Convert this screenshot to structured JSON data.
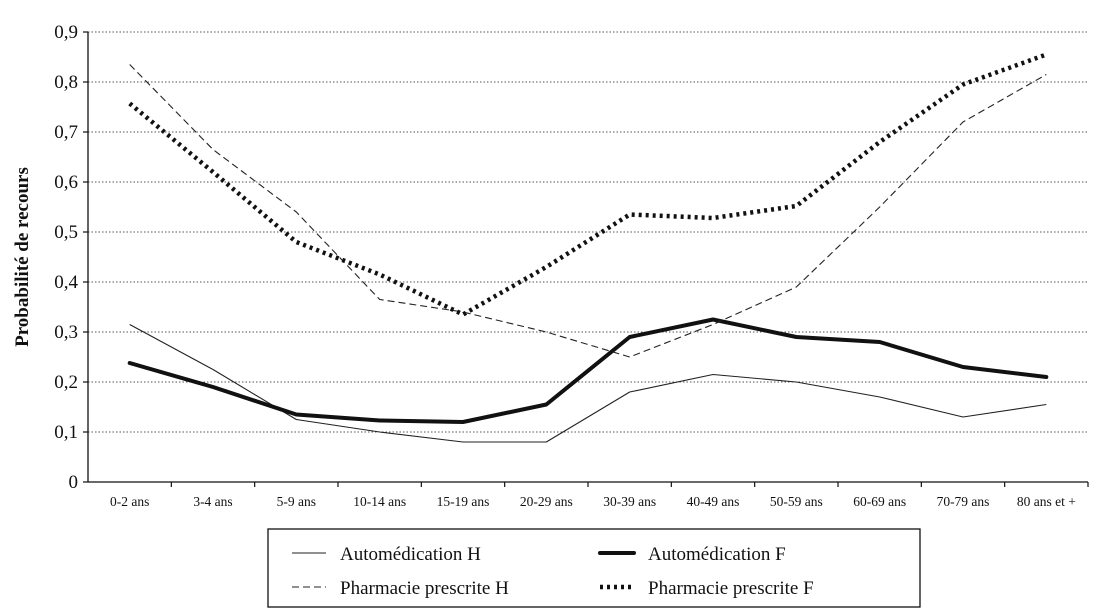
{
  "chart_data": {
    "type": "line",
    "title": "",
    "xlabel": "",
    "ylabel": "Probabilité de recours",
    "categories": [
      "0-2 ans",
      "3-4 ans",
      "5-9 ans",
      "10-14 ans",
      "15-19 ans",
      "20-29 ans",
      "30-39 ans",
      "40-49 ans",
      "50-59 ans",
      "60-69 ans",
      "70-79 ans",
      "80 ans et +"
    ],
    "y_ticks": [
      "0",
      "0,1",
      "0,2",
      "0,3",
      "0,4",
      "0,5",
      "0,6",
      "0,7",
      "0,8",
      "0,9"
    ],
    "ylim": [
      0,
      0.9
    ],
    "grid": "horizontal dotted",
    "legend_position": "bottom",
    "series": [
      {
        "name": "Automédication H",
        "style": "thin-solid",
        "color": "#222222",
        "values": [
          0.315,
          0.225,
          0.125,
          0.1,
          0.08,
          0.08,
          0.18,
          0.215,
          0.2,
          0.17,
          0.13,
          0.155
        ]
      },
      {
        "name": "Automédication F",
        "style": "thick-solid",
        "color": "#111111",
        "values": [
          0.238,
          0.19,
          0.135,
          0.123,
          0.12,
          0.155,
          0.29,
          0.325,
          0.29,
          0.28,
          0.23,
          0.21
        ]
      },
      {
        "name": "Pharmacie prescrite H",
        "style": "thin-dashed",
        "color": "#222222",
        "values": [
          0.835,
          0.665,
          0.54,
          0.365,
          0.34,
          0.3,
          0.25,
          0.315,
          0.39,
          0.55,
          0.72,
          0.815
        ]
      },
      {
        "name": "Pharmacie prescrite F",
        "style": "thick-dotted",
        "color": "#111111",
        "values": [
          0.757,
          0.62,
          0.48,
          0.415,
          0.335,
          0.43,
          0.535,
          0.528,
          0.552,
          0.68,
          0.795,
          0.855
        ]
      }
    ]
  }
}
